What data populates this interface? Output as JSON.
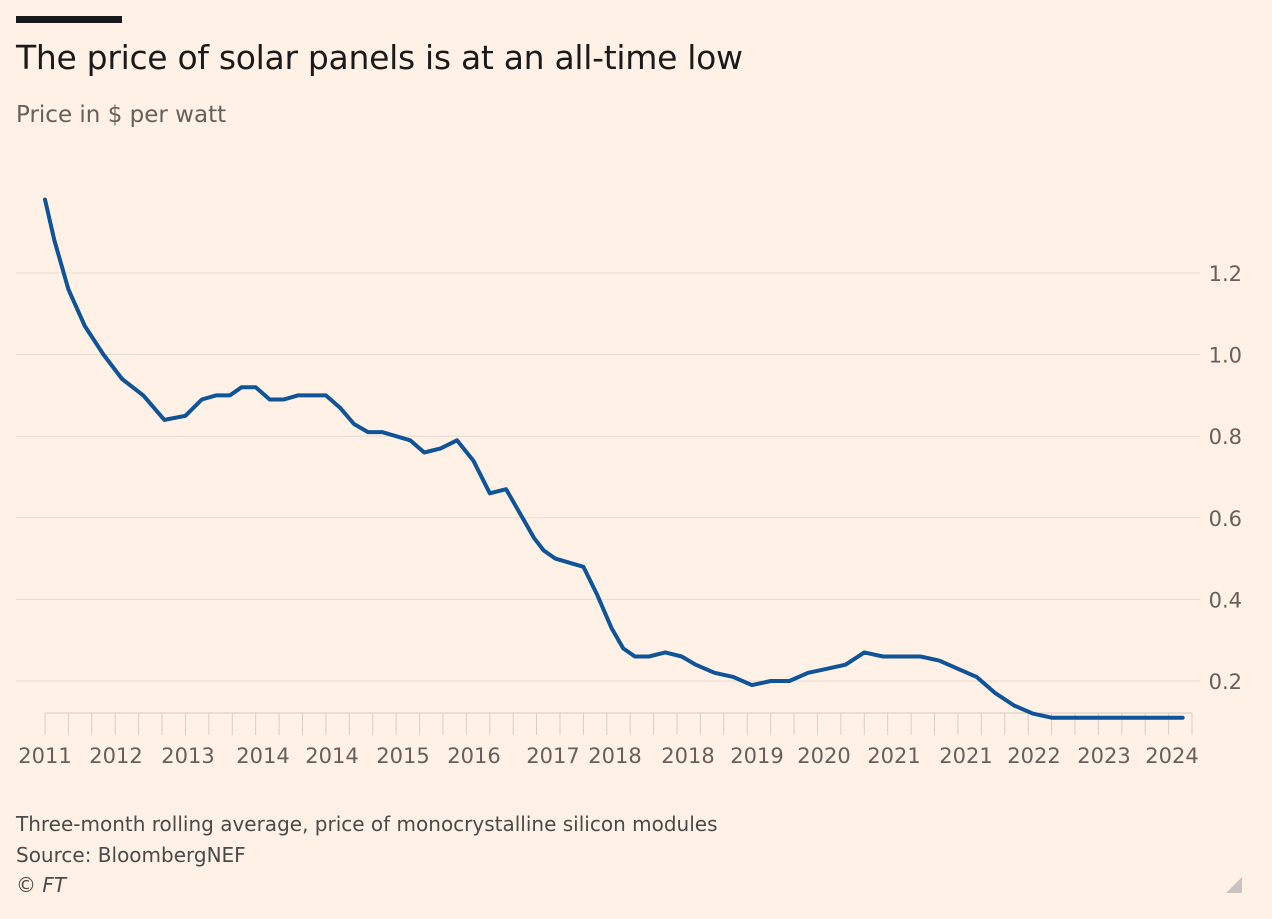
{
  "chart_data": {
    "type": "line",
    "title": "The price of solar panels is at an all-time low",
    "subtitle": "Price in $ per watt",
    "ylim": [
      0.1,
      1.4
    ],
    "yticks": [
      0.2,
      0.4,
      0.6,
      0.8,
      1.0,
      1.2
    ],
    "ytick_labels": [
      "0.2",
      "0.4",
      "0.6",
      "0.8",
      "1.0",
      "1.2"
    ],
    "y_axis_side": "right",
    "grid": true,
    "xlim": [
      0,
      49
    ],
    "xtick_labels": [
      {
        "label": "2011",
        "pos": 0
      },
      {
        "label": "2012",
        "pos": 4
      },
      {
        "label": "2013",
        "pos": 8
      },
      {
        "label": "2014",
        "pos": 12
      },
      {
        "label": "2014",
        "pos": 16
      },
      {
        "label": "2015",
        "pos": 20
      },
      {
        "label": "2016",
        "pos": 24
      },
      {
        "label": "2017",
        "pos": 28
      },
      {
        "label": "2018",
        "pos": 32
      },
      {
        "label": "2018",
        "pos": 36
      },
      {
        "label": "2019",
        "pos": 40
      },
      {
        "label": "2020",
        "pos": 44
      },
      {
        "label": "2021",
        "pos": 48
      }
    ],
    "series": [
      {
        "name": "",
        "color": "#0f5499",
        "x": [
          0,
          0.4,
          1.0,
          1.7,
          2.5,
          3.3,
          4.2,
          5.1,
          6.0,
          6.7,
          7.3,
          7.9,
          8.4,
          9.0,
          9.6,
          10.2,
          10.8,
          11.4,
          12.0,
          12.6,
          13.2,
          13.8,
          14.4,
          15.0,
          15.6,
          16.2,
          16.9,
          17.6,
          18.3,
          19.0,
          19.7,
          20.4,
          20.9,
          21.3,
          21.8,
          22.4,
          23.0,
          23.6,
          24.2,
          24.7,
          25.2,
          25.8,
          26.5,
          27.2,
          27.8,
          28.6,
          29.4,
          30.2,
          31.0,
          31.8,
          32.6,
          33.4,
          34.2,
          35.0,
          35.8,
          36.6,
          37.4,
          38.2,
          39.0,
          39.8,
          40.6,
          41.4,
          42.2,
          43.0,
          43.8,
          44.6,
          45.4,
          46.2,
          47.0,
          47.8,
          48.6
        ],
        "y": [
          1.38,
          1.28,
          1.16,
          1.07,
          1.0,
          0.94,
          0.9,
          0.84,
          0.85,
          0.89,
          0.9,
          0.9,
          0.92,
          0.92,
          0.89,
          0.89,
          0.9,
          0.9,
          0.9,
          0.87,
          0.83,
          0.81,
          0.81,
          0.8,
          0.79,
          0.76,
          0.77,
          0.79,
          0.74,
          0.66,
          0.67,
          0.6,
          0.55,
          0.52,
          0.5,
          0.49,
          0.48,
          0.41,
          0.33,
          0.28,
          0.26,
          0.26,
          0.27,
          0.26,
          0.24,
          0.22,
          0.21,
          0.19,
          0.2,
          0.2,
          0.22,
          0.23,
          0.24,
          0.27,
          0.26,
          0.26,
          0.26,
          0.25,
          0.23,
          0.21,
          0.17,
          0.14,
          0.12,
          0.11,
          0.11,
          0.11,
          0.11,
          0.11,
          0.11,
          0.11,
          0.11
        ]
      }
    ]
  },
  "footer": {
    "note": "Three-month rolling average, price of monocrystalline silicon modules",
    "source": "Source: BloombergNEF",
    "copyright": "© FT"
  }
}
